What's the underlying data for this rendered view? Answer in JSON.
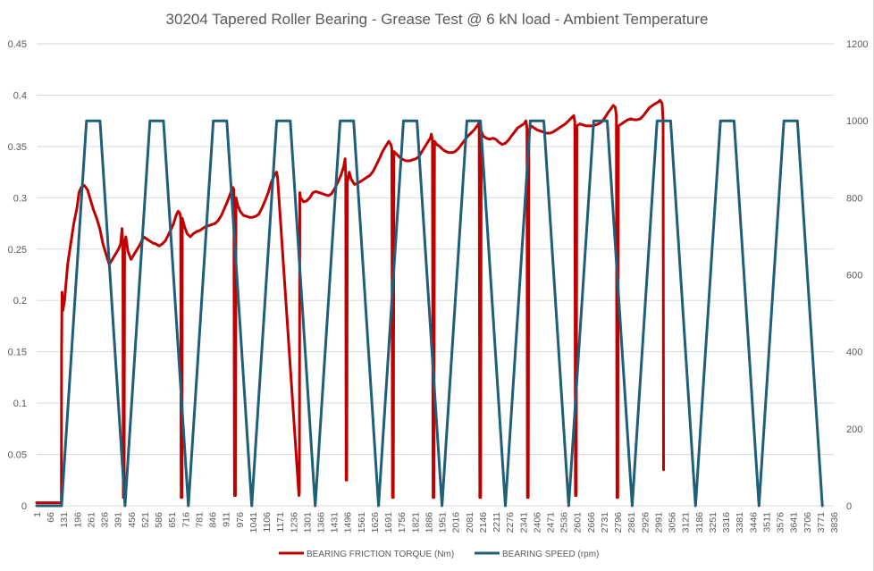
{
  "chart_data": {
    "type": "line",
    "title": "30204 Tapered Roller Bearing - Grease Test @ 6 kN load - Ambient Temperature",
    "xlabel": "",
    "ylabel": "",
    "y2label": "",
    "xlim": [
      1,
      3836
    ],
    "ylim": [
      0,
      0.45
    ],
    "y2lim": [
      0,
      1200
    ],
    "yticks": [
      "0",
      "0.05",
      "0.1",
      "0.15",
      "0.2",
      "0.25",
      "0.3",
      "0.35",
      "0.4",
      "0.45"
    ],
    "y2ticks": [
      "0",
      "200",
      "400",
      "600",
      "800",
      "1000",
      "1200"
    ],
    "xticks": [
      "1",
      "66",
      "131",
      "196",
      "261",
      "326",
      "391",
      "456",
      "521",
      "586",
      "651",
      "716",
      "781",
      "846",
      "911",
      "976",
      "1041",
      "1106",
      "1171",
      "1236",
      "1301",
      "1366",
      "1431",
      "1496",
      "1561",
      "1626",
      "1691",
      "1756",
      "1821",
      "1886",
      "1951",
      "2016",
      "2081",
      "2146",
      "2211",
      "2276",
      "2341",
      "2406",
      "2471",
      "2536",
      "2601",
      "2666",
      "2731",
      "2796",
      "2861",
      "2926",
      "2991",
      "3056",
      "3121",
      "3186",
      "3251",
      "3316",
      "3381",
      "3446",
      "3511",
      "3576",
      "3641",
      "3706",
      "3771",
      "3836"
    ],
    "grid": true,
    "legend_position": "bottom",
    "series": [
      {
        "name": "BEARING FRICTION TORQUE (Nm)",
        "axis": "left",
        "color": "#C00000",
        "points": [
          [
            1,
            0.003
          ],
          [
            120,
            0.003
          ],
          [
            121,
            0.15
          ],
          [
            123,
            0.208
          ],
          [
            127,
            0.19
          ],
          [
            135,
            0.2
          ],
          [
            150,
            0.235
          ],
          [
            165,
            0.255
          ],
          [
            180,
            0.275
          ],
          [
            195,
            0.29
          ],
          [
            205,
            0.305
          ],
          [
            215,
            0.31
          ],
          [
            230,
            0.312
          ],
          [
            245,
            0.308
          ],
          [
            260,
            0.298
          ],
          [
            275,
            0.288
          ],
          [
            290,
            0.28
          ],
          [
            305,
            0.27
          ],
          [
            320,
            0.255
          ],
          [
            335,
            0.245
          ],
          [
            350,
            0.235
          ],
          [
            365,
            0.24
          ],
          [
            380,
            0.245
          ],
          [
            395,
            0.25
          ],
          [
            405,
            0.255
          ],
          [
            412,
            0.27
          ],
          [
            416,
            0.252
          ],
          [
            418,
            0.008
          ],
          [
            422,
            0.008
          ],
          [
            424,
            0.255
          ],
          [
            430,
            0.262
          ],
          [
            440,
            0.248
          ],
          [
            455,
            0.24
          ],
          [
            470,
            0.245
          ],
          [
            485,
            0.25
          ],
          [
            500,
            0.255
          ],
          [
            515,
            0.262
          ],
          [
            530,
            0.26
          ],
          [
            545,
            0.258
          ],
          [
            560,
            0.256
          ],
          [
            575,
            0.255
          ],
          [
            590,
            0.253
          ],
          [
            605,
            0.255
          ],
          [
            620,
            0.258
          ],
          [
            630,
            0.262
          ],
          [
            645,
            0.268
          ],
          [
            660,
            0.275
          ],
          [
            672,
            0.283
          ],
          [
            682,
            0.287
          ],
          [
            690,
            0.285
          ],
          [
            694,
            0.28
          ],
          [
            696,
            0.008
          ],
          [
            700,
            0.008
          ],
          [
            702,
            0.28
          ],
          [
            712,
            0.272
          ],
          [
            725,
            0.265
          ],
          [
            740,
            0.262
          ],
          [
            755,
            0.265
          ],
          [
            770,
            0.267
          ],
          [
            785,
            0.268
          ],
          [
            800,
            0.27
          ],
          [
            815,
            0.272
          ],
          [
            830,
            0.273
          ],
          [
            845,
            0.274
          ],
          [
            860,
            0.275
          ],
          [
            875,
            0.278
          ],
          [
            890,
            0.283
          ],
          [
            905,
            0.29
          ],
          [
            920,
            0.297
          ],
          [
            935,
            0.305
          ],
          [
            945,
            0.31
          ],
          [
            950,
            0.308
          ],
          [
            953,
            0.01
          ],
          [
            957,
            0.01
          ],
          [
            960,
            0.3
          ],
          [
            968,
            0.293
          ],
          [
            980,
            0.287
          ],
          [
            995,
            0.283
          ],
          [
            1010,
            0.282
          ],
          [
            1025,
            0.281
          ],
          [
            1040,
            0.281
          ],
          [
            1055,
            0.282
          ],
          [
            1070,
            0.284
          ],
          [
            1085,
            0.29
          ],
          [
            1100,
            0.297
          ],
          [
            1115,
            0.305
          ],
          [
            1130,
            0.315
          ],
          [
            1145,
            0.322
          ],
          [
            1155,
            0.325
          ],
          [
            1160,
            0.32
          ],
          [
            1263,
            0.01
          ],
          [
            1265,
            0.012
          ],
          [
            1267,
            0.305
          ],
          [
            1270,
            0.3
          ],
          [
            1285,
            0.296
          ],
          [
            1300,
            0.297
          ],
          [
            1315,
            0.3
          ],
          [
            1330,
            0.305
          ],
          [
            1345,
            0.306
          ],
          [
            1360,
            0.305
          ],
          [
            1375,
            0.304
          ],
          [
            1390,
            0.303
          ],
          [
            1405,
            0.302
          ],
          [
            1420,
            0.304
          ],
          [
            1435,
            0.309
          ],
          [
            1450,
            0.315
          ],
          [
            1465,
            0.322
          ],
          [
            1478,
            0.33
          ],
          [
            1485,
            0.338
          ],
          [
            1488,
            0.32
          ],
          [
            1490,
            0.025
          ],
          [
            1493,
            0.025
          ],
          [
            1496,
            0.315
          ],
          [
            1505,
            0.325
          ],
          [
            1515,
            0.318
          ],
          [
            1530,
            0.313
          ],
          [
            1545,
            0.314
          ],
          [
            1560,
            0.316
          ],
          [
            1575,
            0.318
          ],
          [
            1590,
            0.32
          ],
          [
            1605,
            0.322
          ],
          [
            1620,
            0.326
          ],
          [
            1635,
            0.332
          ],
          [
            1650,
            0.338
          ],
          [
            1665,
            0.345
          ],
          [
            1680,
            0.35
          ],
          [
            1695,
            0.355
          ],
          [
            1705,
            0.352
          ],
          [
            1710,
            0.348
          ],
          [
            1713,
            0.008
          ],
          [
            1717,
            0.008
          ],
          [
            1720,
            0.345
          ],
          [
            1735,
            0.342
          ],
          [
            1750,
            0.339
          ],
          [
            1765,
            0.337
          ],
          [
            1780,
            0.336
          ],
          [
            1795,
            0.336
          ],
          [
            1810,
            0.337
          ],
          [
            1825,
            0.338
          ],
          [
            1840,
            0.34
          ],
          [
            1855,
            0.345
          ],
          [
            1870,
            0.35
          ],
          [
            1885,
            0.355
          ],
          [
            1895,
            0.358
          ],
          [
            1900,
            0.362
          ],
          [
            1905,
            0.356
          ],
          [
            1908,
            0.008
          ],
          [
            1912,
            0.008
          ],
          [
            1915,
            0.355
          ],
          [
            1925,
            0.352
          ],
          [
            1940,
            0.35
          ],
          [
            1955,
            0.347
          ],
          [
            1970,
            0.345
          ],
          [
            1985,
            0.344
          ],
          [
            2000,
            0.344
          ],
          [
            2015,
            0.345
          ],
          [
            2030,
            0.348
          ],
          [
            2045,
            0.352
          ],
          [
            2060,
            0.356
          ],
          [
            2075,
            0.36
          ],
          [
            2090,
            0.363
          ],
          [
            2105,
            0.366
          ],
          [
            2120,
            0.37
          ],
          [
            2130,
            0.373
          ],
          [
            2133,
            0.008
          ],
          [
            2137,
            0.008
          ],
          [
            2140,
            0.365
          ],
          [
            2150,
            0.36
          ],
          [
            2165,
            0.358
          ],
          [
            2180,
            0.357
          ],
          [
            2195,
            0.358
          ],
          [
            2210,
            0.357
          ],
          [
            2225,
            0.354
          ],
          [
            2240,
            0.352
          ],
          [
            2255,
            0.353
          ],
          [
            2270,
            0.356
          ],
          [
            2285,
            0.36
          ],
          [
            2300,
            0.364
          ],
          [
            2315,
            0.368
          ],
          [
            2330,
            0.37
          ],
          [
            2345,
            0.372
          ],
          [
            2355,
            0.375
          ],
          [
            2360,
            0.368
          ],
          [
            2362,
            0.008
          ],
          [
            2366,
            0.008
          ],
          [
            2369,
            0.365
          ],
          [
            2380,
            0.37
          ],
          [
            2395,
            0.368
          ],
          [
            2410,
            0.366
          ],
          [
            2425,
            0.365
          ],
          [
            2440,
            0.364
          ],
          [
            2455,
            0.363
          ],
          [
            2470,
            0.363
          ],
          [
            2485,
            0.364
          ],
          [
            2500,
            0.366
          ],
          [
            2515,
            0.368
          ],
          [
            2530,
            0.37
          ],
          [
            2545,
            0.372
          ],
          [
            2560,
            0.375
          ],
          [
            2575,
            0.378
          ],
          [
            2585,
            0.38
          ],
          [
            2590,
            0.374
          ],
          [
            2593,
            0.01
          ],
          [
            2597,
            0.01
          ],
          [
            2600,
            0.37
          ],
          [
            2615,
            0.372
          ],
          [
            2630,
            0.371
          ],
          [
            2645,
            0.37
          ],
          [
            2660,
            0.37
          ],
          [
            2675,
            0.37
          ],
          [
            2690,
            0.371
          ],
          [
            2705,
            0.372
          ],
          [
            2720,
            0.374
          ],
          [
            2735,
            0.378
          ],
          [
            2750,
            0.383
          ],
          [
            2765,
            0.387
          ],
          [
            2775,
            0.39
          ],
          [
            2785,
            0.388
          ],
          [
            2790,
            0.38
          ],
          [
            2793,
            0.008
          ],
          [
            2797,
            0.008
          ],
          [
            2800,
            0.37
          ],
          [
            2815,
            0.372
          ],
          [
            2830,
            0.374
          ],
          [
            2845,
            0.376
          ],
          [
            2860,
            0.377
          ],
          [
            2875,
            0.376
          ],
          [
            2890,
            0.376
          ],
          [
            2905,
            0.377
          ],
          [
            2920,
            0.38
          ],
          [
            2935,
            0.384
          ],
          [
            2950,
            0.388
          ],
          [
            2965,
            0.39
          ],
          [
            2980,
            0.392
          ],
          [
            2990,
            0.393
          ],
          [
            3000,
            0.395
          ],
          [
            3010,
            0.392
          ],
          [
            3015,
            0.375
          ],
          [
            3017,
            0.035
          ],
          [
            3017,
            0.035
          ]
        ]
      },
      {
        "name": "BEARING SPEED (rpm)",
        "axis": "right",
        "color": "#1F5F7A",
        "points": [
          [
            1,
            0
          ],
          [
            121,
            0
          ],
          [
            241,
            1000
          ],
          [
            306,
            1000
          ],
          [
            426,
            0
          ],
          [
            546,
            1000
          ],
          [
            611,
            1000
          ],
          [
            731,
            0
          ],
          [
            851,
            1000
          ],
          [
            916,
            1000
          ],
          [
            1036,
            0
          ],
          [
            1156,
            1000
          ],
          [
            1221,
            1000
          ],
          [
            1341,
            0
          ],
          [
            1461,
            1000
          ],
          [
            1526,
            1000
          ],
          [
            1646,
            0
          ],
          [
            1766,
            1000
          ],
          [
            1831,
            1000
          ],
          [
            1951,
            0
          ],
          [
            2071,
            1000
          ],
          [
            2136,
            1000
          ],
          [
            2256,
            0
          ],
          [
            2376,
            1000
          ],
          [
            2441,
            1000
          ],
          [
            2561,
            0
          ],
          [
            2681,
            1000
          ],
          [
            2746,
            1000
          ],
          [
            2866,
            0
          ],
          [
            2986,
            1000
          ],
          [
            3051,
            1000
          ],
          [
            3171,
            0
          ],
          [
            3291,
            1000
          ],
          [
            3356,
            1000
          ],
          [
            3476,
            0
          ],
          [
            3596,
            1000
          ],
          [
            3661,
            1000
          ],
          [
            3781,
            0
          ]
        ]
      }
    ]
  }
}
